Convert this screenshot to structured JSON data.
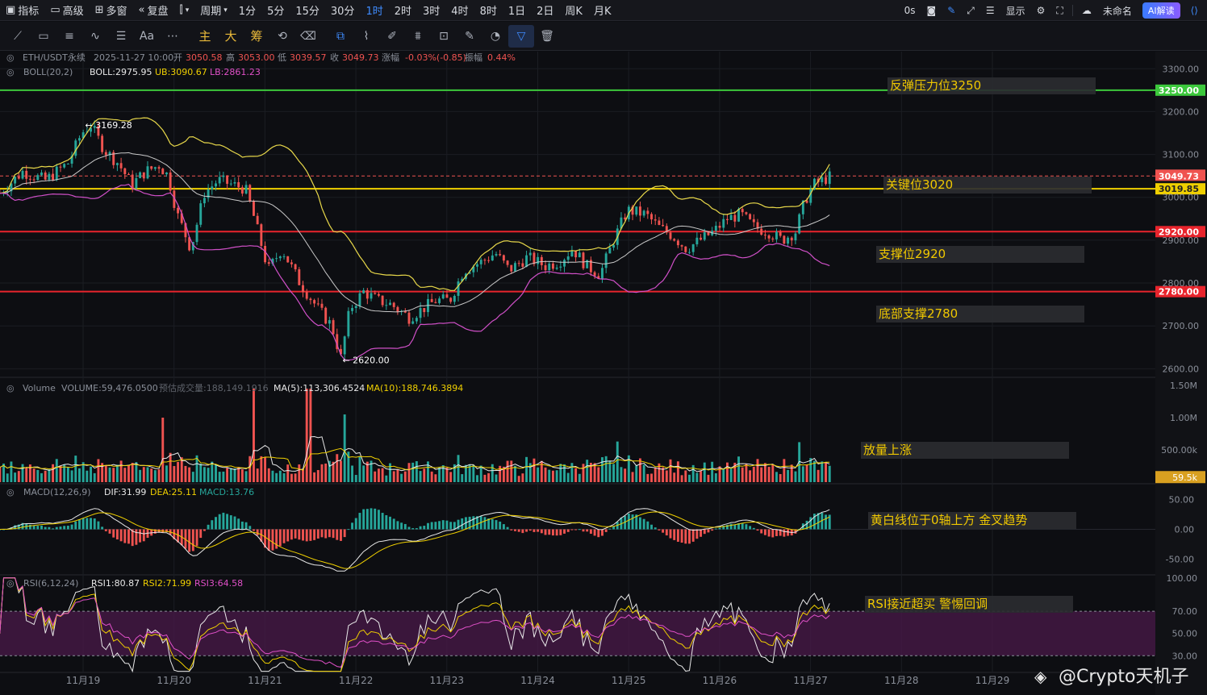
{
  "topbar": {
    "items": [
      "指标",
      "高级",
      "多窗",
      "复盘",
      "周期",
      "1分",
      "5分",
      "15分",
      "30分",
      "1时",
      "2时",
      "3时",
      "4时",
      "8时",
      "1日",
      "2日",
      "周K",
      "月K"
    ],
    "active": "1时",
    "right": {
      "countdown": "0s",
      "display_label": "显示",
      "layout_name": "未命名",
      "ai_label": "AI解读"
    }
  },
  "drawing_tools": {
    "main_label": "主",
    "big_label": "大",
    "chip_label": "筹",
    "text_tool": "Aa"
  },
  "colors": {
    "background": "#0d0e12",
    "up": "#26a69a",
    "down": "#ef5350",
    "yellow": "#f0d000",
    "green_line": "#3cc83c",
    "red_line": "#e8242c",
    "boll_mid": "#c8c8c8",
    "boll_upper": "#e8d84a",
    "boll_lower": "#d050c8",
    "rsi_zone": "#4a1a4a",
    "annotation_bg": "#2a2b30",
    "annotation_text": "#f0c800"
  },
  "legend": {
    "symbol": "ETH/USDT永续",
    "datetime": "2025-11-27 10:00",
    "open_label": "开",
    "open": "3050.58",
    "high_label": "高",
    "high": "3053.00",
    "low_label": "低",
    "low": "3039.57",
    "close_label": "收",
    "close": "3049.73",
    "change_label": "涨幅",
    "change": "-0.03%(-0.85)",
    "amp_label": "振幅",
    "amp": "0.44%",
    "boll_name": "BOLL(20,2)",
    "boll": "BOLL:2975.95",
    "ub": "UB:3090.67",
    "lb": "LB:2861.23"
  },
  "volume_legend": {
    "name": "Volume",
    "volume": "VOLUME:59,476.0500",
    "est": "预估成交量:188,149.1916",
    "ma5": "MA(5):113,306.4524",
    "ma10": "MA(10):188,746.3894"
  },
  "macd_legend": {
    "name": "MACD(12,26,9)",
    "dif": "DIF:31.99",
    "dea": "DEA:25.11",
    "macd": "MACD:13.76"
  },
  "rsi_legend": {
    "name": "RSI(6,12,24)",
    "rsi1": "RSI1:80.87",
    "rsi2": "RSI2:71.99",
    "rsi3": "RSI3:64.58"
  },
  "annotations": {
    "resistance": "反弹压力位3250",
    "key": "关键位3020",
    "support": "支撑位2920",
    "bottom": "底部支撑2780",
    "volume": "放量上涨",
    "macd": "黄白线位于0轴上方 金叉趋势",
    "rsi": "RSI接近超买 警惕回调"
  },
  "watermark": "@Crypto天机子",
  "chart_data": {
    "type": "candlestick",
    "symbol": "ETH/USDT",
    "interval": "1h",
    "price_ylim": [
      2580,
      3340
    ],
    "price_ticks": [
      "3300.00",
      "3200.00",
      "3100.00",
      "3000.00",
      "2900.00",
      "2800.00",
      "2700.00",
      "2600.00"
    ],
    "price_tick_values": [
      3300,
      3200,
      3100,
      3000,
      2900,
      2800,
      2700,
      2600
    ],
    "x_labels": [
      "11月19",
      "11月20",
      "11月21",
      "11月22",
      "11月23",
      "11月24",
      "11月25",
      "11月26",
      "11月27",
      "11月28",
      "11月29"
    ],
    "high_marker": {
      "label": "3169.28",
      "value": 3169.28,
      "day": 0.12
    },
    "low_marker": {
      "label": "2620.00",
      "value": 2620.0,
      "day": 2.95
    },
    "last_price": {
      "label": "3049.73",
      "value": 3049.73
    },
    "hlines": [
      {
        "value": 3250,
        "label": "3250.00",
        "color": "#3cc83c"
      },
      {
        "value": 3019.85,
        "label": "3019.85",
        "color": "#f0d000"
      },
      {
        "value": 2920,
        "label": "2920.00",
        "color": "#e8242c"
      },
      {
        "value": 2780,
        "label": "2780.00",
        "color": "#e8242c"
      }
    ],
    "price_path": [
      [
        -0.8,
        3010
      ],
      [
        -0.55,
        3060
      ],
      [
        -0.3,
        3040
      ],
      [
        -0.05,
        3080
      ],
      [
        0.1,
        3150
      ],
      [
        0.2,
        3169
      ],
      [
        0.35,
        3110
      ],
      [
        0.5,
        3080
      ],
      [
        0.65,
        3030
      ],
      [
        0.8,
        3060
      ],
      [
        0.95,
        3075
      ],
      [
        1.05,
        3050
      ],
      [
        1.15,
        2960
      ],
      [
        1.3,
        2880
      ],
      [
        1.45,
        3010
      ],
      [
        1.6,
        3040
      ],
      [
        1.75,
        3030
      ],
      [
        1.9,
        3020
      ],
      [
        2.0,
        2950
      ],
      [
        2.15,
        2830
      ],
      [
        2.3,
        2880
      ],
      [
        2.5,
        2800
      ],
      [
        2.7,
        2740
      ],
      [
        2.85,
        2700
      ],
      [
        2.95,
        2625
      ],
      [
        3.05,
        2740
      ],
      [
        3.2,
        2780
      ],
      [
        3.35,
        2760
      ],
      [
        3.5,
        2750
      ],
      [
        3.7,
        2720
      ],
      [
        3.85,
        2740
      ],
      [
        4.0,
        2760
      ],
      [
        4.15,
        2760
      ],
      [
        4.3,
        2830
      ],
      [
        4.5,
        2850
      ],
      [
        4.65,
        2870
      ],
      [
        4.8,
        2830
      ],
      [
        5.0,
        2860
      ],
      [
        5.2,
        2840
      ],
      [
        5.35,
        2850
      ],
      [
        5.5,
        2880
      ],
      [
        5.65,
        2840
      ],
      [
        5.8,
        2820
      ],
      [
        5.95,
        2900
      ],
      [
        6.1,
        2970
      ],
      [
        6.3,
        2960
      ],
      [
        6.45,
        2930
      ],
      [
        6.6,
        2910
      ],
      [
        6.75,
        2880
      ],
      [
        6.9,
        2900
      ],
      [
        7.05,
        2920
      ],
      [
        7.2,
        2950
      ],
      [
        7.35,
        2960
      ],
      [
        7.5,
        2930
      ],
      [
        7.65,
        2920
      ],
      [
        7.8,
        2900
      ],
      [
        7.95,
        2920
      ],
      [
        8.05,
        2990
      ],
      [
        8.15,
        3030
      ],
      [
        8.25,
        3040
      ],
      [
        8.35,
        3050
      ]
    ],
    "series": [
      {
        "name": "BOLL",
        "color": "#c8c8c8"
      },
      {
        "name": "UB",
        "color": "#e8d84a"
      },
      {
        "name": "LB",
        "color": "#d050c8"
      }
    ],
    "volume": {
      "ticks": [
        "1.50M",
        "1.00M",
        "500.00k"
      ],
      "tick_values": [
        1500000,
        1000000,
        500000
      ],
      "ylim": [
        0,
        1600000
      ],
      "last_label": "59.5k",
      "spikes": [
        [
          2.0,
          1450000
        ],
        [
          2.6,
          1450000
        ],
        [
          1.0,
          1000000
        ],
        [
          3.0,
          1050000
        ],
        [
          8.0,
          620000
        ],
        [
          6.0,
          630000
        ]
      ]
    },
    "macd": {
      "ticks": [
        "50.00",
        "0.00",
        "-50.00"
      ],
      "tick_values": [
        50,
        0,
        -50
      ],
      "ylim": [
        -75,
        75
      ]
    },
    "rsi": {
      "ticks": [
        "100.00",
        "70.00",
        "50.00",
        "30.00"
      ],
      "tick_values": [
        100,
        70,
        50,
        30
      ],
      "ylim": [
        15,
        102
      ],
      "overbought": 70,
      "oversold": 30
    }
  }
}
